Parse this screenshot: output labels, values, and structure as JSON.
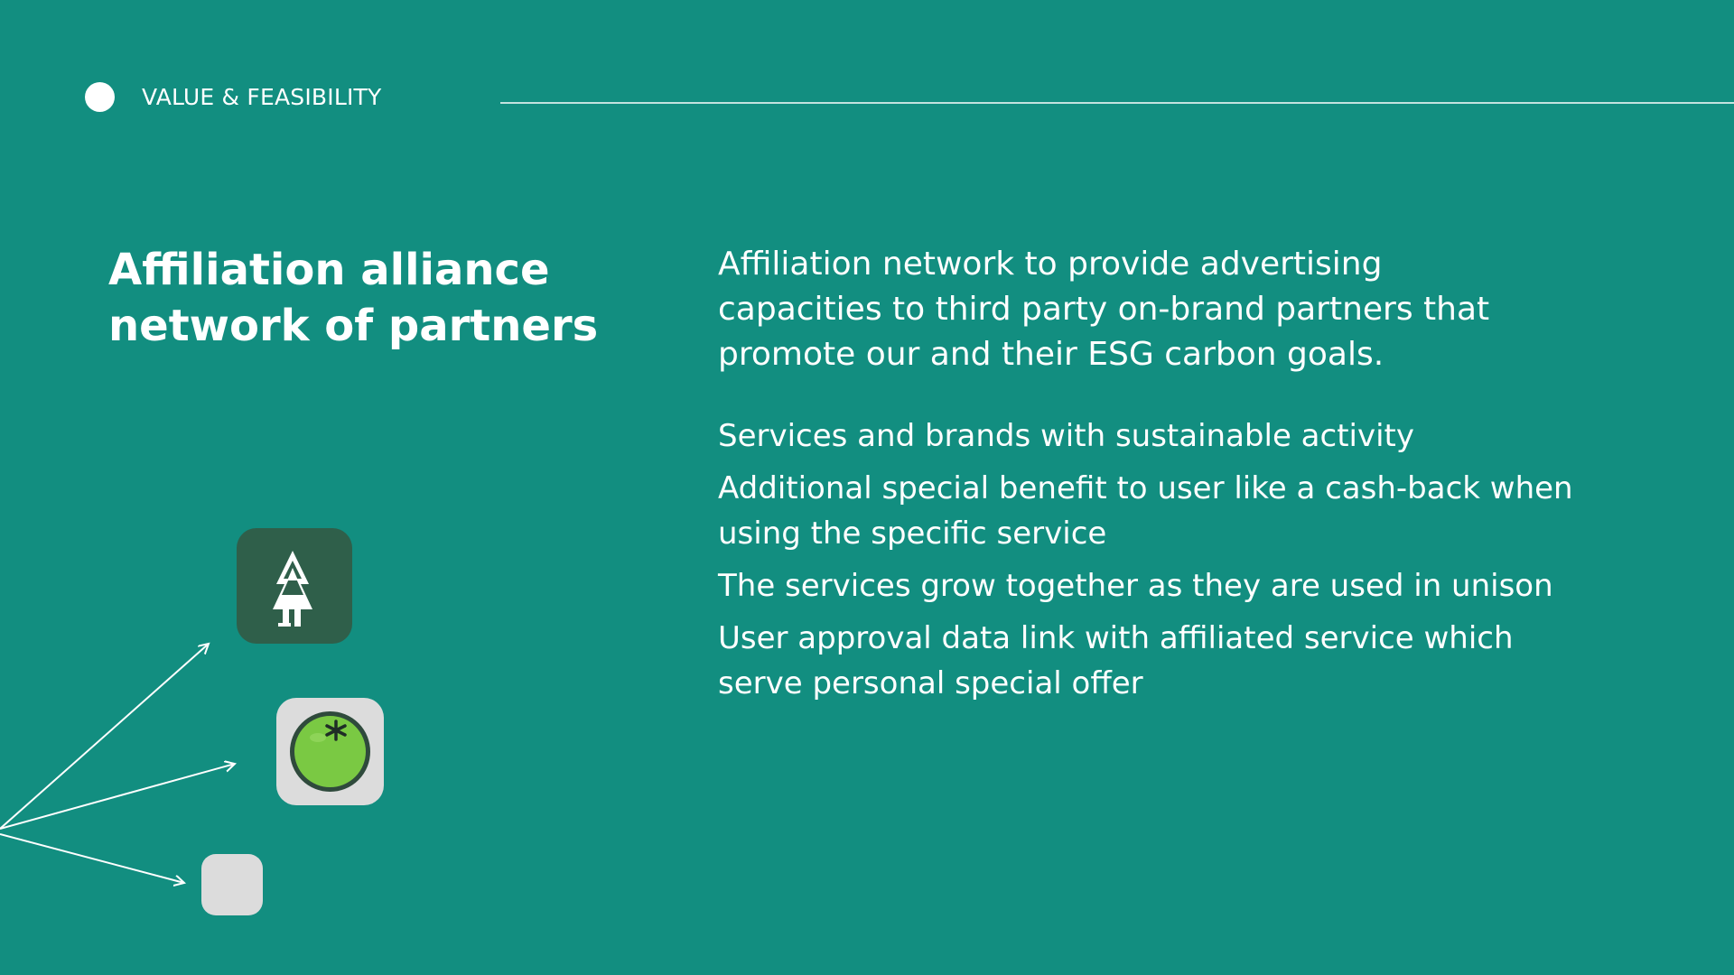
{
  "header": {
    "section_label": "VALUE & FEASIBILITY"
  },
  "title": {
    "line1": "Affiliation alliance",
    "line2": "network of partners"
  },
  "lead": {
    "line1": "Affiliation network to provide advertising",
    "line2": "capacities to third party on-brand partners that",
    "line3": "promote our and their ESG carbon goals."
  },
  "bullets": [
    {
      "line1": "Services and brands with sustainable activity",
      "line2": ""
    },
    {
      "line1": "Additional special benefit to user like a cash-back when",
      "line2": "using the specific service"
    },
    {
      "line1": "The services grow together as they are used in unison",
      "line2": ""
    },
    {
      "line1": "User approval data link with affiliated service which",
      "line2": "serve personal special offer"
    }
  ],
  "partner_icons": [
    {
      "name": "tree-app-icon",
      "tile_color": "#2f5f4a"
    },
    {
      "name": "tomato-app-icon",
      "tile_color": "#dcdcdc"
    },
    {
      "name": "blank-app-icon",
      "tile_color": "#dcdcdc"
    }
  ],
  "colors": {
    "background": "#128e80",
    "text": "#ffffff",
    "tomato_green": "#7ac943",
    "tree_tile": "#2f5f4a"
  }
}
